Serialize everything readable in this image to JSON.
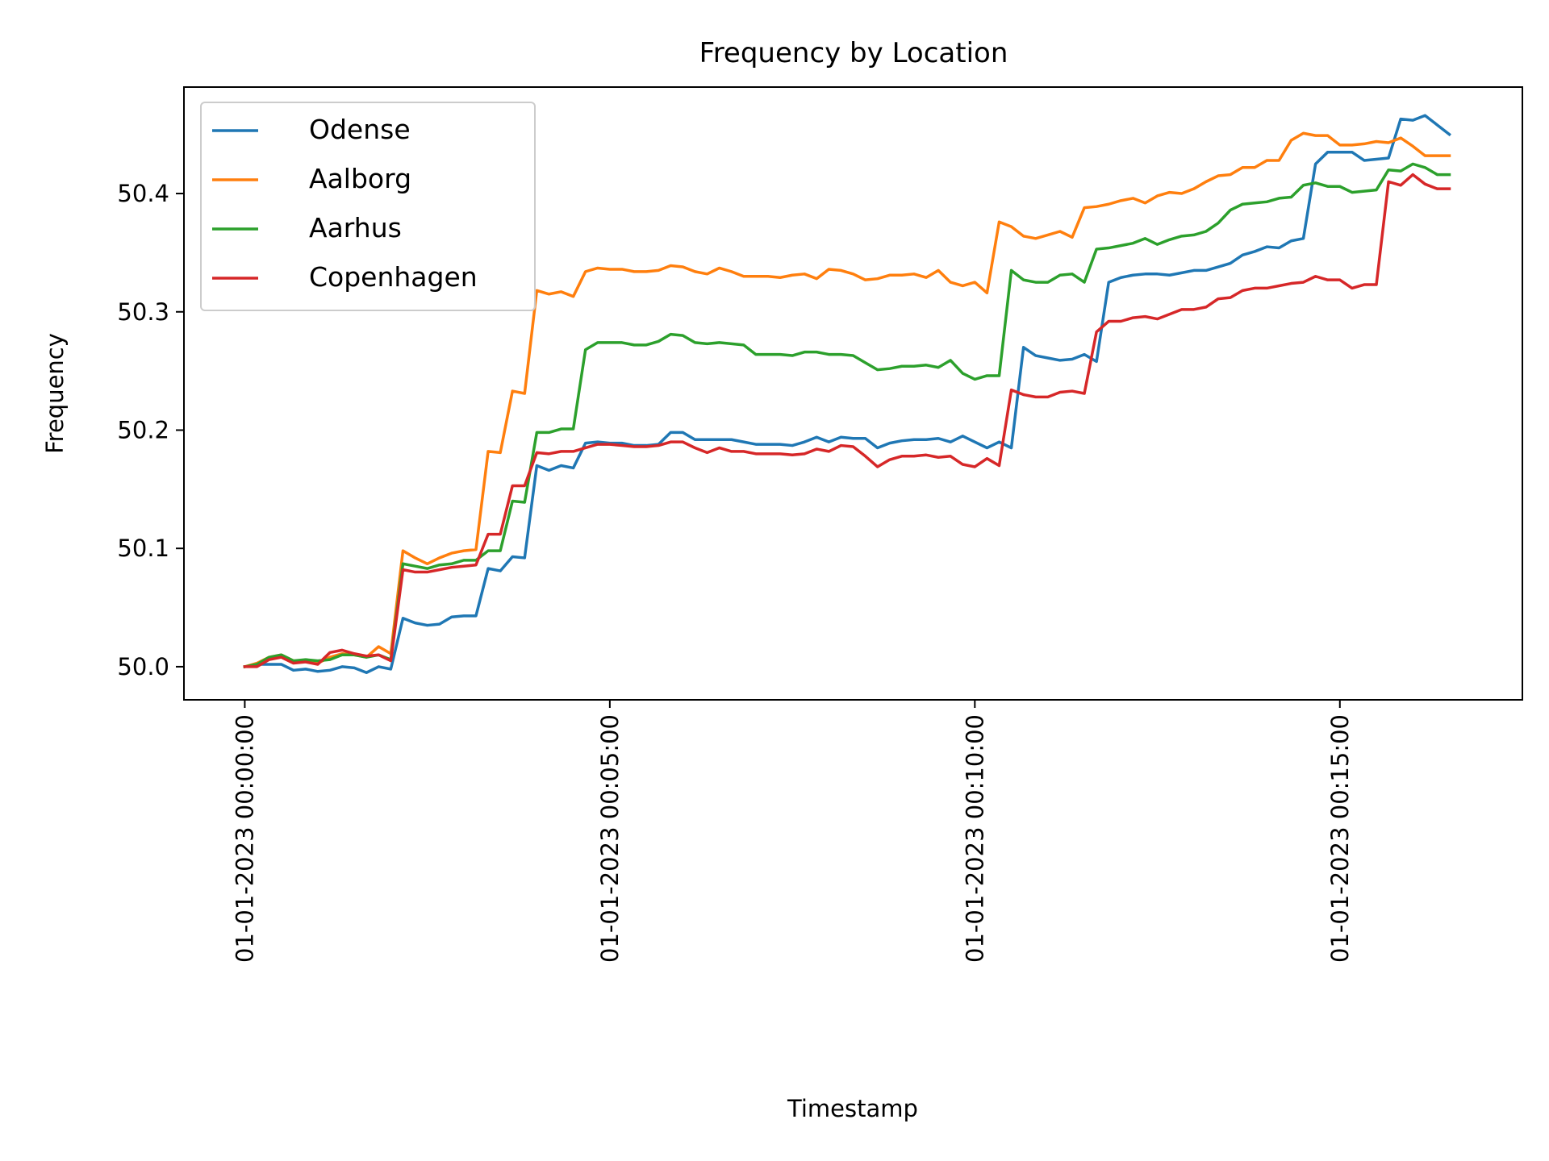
{
  "chart_data": {
    "type": "line",
    "title": "Frequency by Location",
    "xlabel": "Timestamp",
    "ylabel": "Frequency",
    "x": {
      "start": "01-01-2023 00:00:00",
      "step_seconds": 10,
      "count": 100
    },
    "xlim": [
      "31-12-2022 23:59:10",
      "01-01-2023 00:17:30"
    ],
    "ylim": [
      49.972,
      50.49
    ],
    "xticks": [
      {
        "value": "01-01-2023 00:00:00",
        "label": "01-01-2023 00:00:00"
      },
      {
        "value": "01-01-2023 00:05:00",
        "label": "01-01-2023 00:05:00"
      },
      {
        "value": "01-01-2023 00:10:00",
        "label": "01-01-2023 00:10:00"
      },
      {
        "value": "01-01-2023 00:15:00",
        "label": "01-01-2023 00:15:00"
      }
    ],
    "yticks": [
      {
        "value": 50.0,
        "label": "50.0"
      },
      {
        "value": 50.1,
        "label": "50.1"
      },
      {
        "value": 50.2,
        "label": "50.2"
      },
      {
        "value": 50.3,
        "label": "50.3"
      },
      {
        "value": 50.4,
        "label": "50.4"
      }
    ],
    "grid": false,
    "legend": "upper left",
    "series": [
      {
        "name": "Odense",
        "color": "#1f77b4",
        "values": [
          50.0,
          50.002,
          50.002,
          50.002,
          49.997,
          49.998,
          49.996,
          49.997,
          50.0,
          49.999,
          49.995,
          50.0,
          49.998,
          50.041,
          50.037,
          50.035,
          50.036,
          50.042,
          50.043,
          50.043,
          50.083,
          50.081,
          50.093,
          50.092,
          50.17,
          50.166,
          50.17,
          50.168,
          50.189,
          50.19,
          50.189,
          50.189,
          50.187,
          50.187,
          50.188,
          50.198,
          50.198,
          50.192,
          50.192,
          50.192,
          50.192,
          50.19,
          50.188,
          50.188,
          50.188,
          50.187,
          50.19,
          50.194,
          50.19,
          50.194,
          50.193,
          50.193,
          50.185,
          50.189,
          50.191,
          50.192,
          50.192,
          50.193,
          50.19,
          50.195,
          50.19,
          50.185,
          50.19,
          50.185,
          50.27,
          50.263,
          50.261,
          50.259,
          50.26,
          50.264,
          50.258,
          50.325,
          50.329,
          50.331,
          50.332,
          50.332,
          50.331,
          50.333,
          50.335,
          50.335,
          50.338,
          50.341,
          50.348,
          50.351,
          50.355,
          50.354,
          50.36,
          50.362,
          50.425,
          50.435,
          50.435,
          50.435,
          50.428,
          50.429,
          50.43,
          50.463,
          50.462,
          50.466,
          50.458,
          50.45
        ]
      },
      {
        "name": "Aalborg",
        "color": "#ff7f0e",
        "values": [
          50.0,
          50.003,
          50.008,
          50.01,
          50.005,
          50.005,
          50.003,
          50.008,
          50.011,
          50.01,
          50.008,
          50.017,
          50.011,
          50.098,
          50.092,
          50.087,
          50.092,
          50.096,
          50.098,
          50.099,
          50.182,
          50.181,
          50.233,
          50.231,
          50.318,
          50.315,
          50.317,
          50.313,
          50.334,
          50.337,
          50.336,
          50.336,
          50.334,
          50.334,
          50.335,
          50.339,
          50.338,
          50.334,
          50.332,
          50.337,
          50.334,
          50.33,
          50.33,
          50.33,
          50.329,
          50.331,
          50.332,
          50.328,
          50.336,
          50.335,
          50.332,
          50.327,
          50.328,
          50.331,
          50.331,
          50.332,
          50.329,
          50.335,
          50.325,
          50.322,
          50.325,
          50.316,
          50.376,
          50.372,
          50.364,
          50.362,
          50.365,
          50.368,
          50.363,
          50.388,
          50.389,
          50.391,
          50.394,
          50.396,
          50.392,
          50.398,
          50.401,
          50.4,
          50.404,
          50.41,
          50.415,
          50.416,
          50.422,
          50.422,
          50.428,
          50.428,
          50.445,
          50.451,
          50.449,
          50.449,
          50.441,
          50.441,
          50.442,
          50.444,
          50.443,
          50.447,
          50.44,
          50.432,
          50.432,
          50.432
        ]
      },
      {
        "name": "Aarhus",
        "color": "#2ca02c",
        "values": [
          50.0,
          50.002,
          50.008,
          50.01,
          50.005,
          50.006,
          50.005,
          50.006,
          50.01,
          50.01,
          50.008,
          50.01,
          50.006,
          50.087,
          50.085,
          50.083,
          50.086,
          50.087,
          50.09,
          50.09,
          50.098,
          50.098,
          50.14,
          50.139,
          50.198,
          50.198,
          50.201,
          50.201,
          50.268,
          50.274,
          50.274,
          50.274,
          50.272,
          50.272,
          50.275,
          50.281,
          50.28,
          50.274,
          50.273,
          50.274,
          50.273,
          50.272,
          50.264,
          50.264,
          50.264,
          50.263,
          50.266,
          50.266,
          50.264,
          50.264,
          50.263,
          50.257,
          50.251,
          50.252,
          50.254,
          50.254,
          50.255,
          50.253,
          50.259,
          50.248,
          50.243,
          50.246,
          50.246,
          50.335,
          50.327,
          50.325,
          50.325,
          50.331,
          50.332,
          50.325,
          50.353,
          50.354,
          50.356,
          50.358,
          50.362,
          50.357,
          50.361,
          50.364,
          50.365,
          50.368,
          50.375,
          50.386,
          50.391,
          50.392,
          50.393,
          50.396,
          50.397,
          50.407,
          50.409,
          50.406,
          50.406,
          50.401,
          50.402,
          50.403,
          50.42,
          50.419,
          50.425,
          50.422,
          50.416,
          50.416
        ]
      },
      {
        "name": "Copenhagen",
        "color": "#d62728",
        "values": [
          50.0,
          50.0,
          50.006,
          50.008,
          50.003,
          50.004,
          50.002,
          50.012,
          50.014,
          50.011,
          50.009,
          50.01,
          50.005,
          50.082,
          50.08,
          50.08,
          50.082,
          50.084,
          50.085,
          50.086,
          50.112,
          50.112,
          50.153,
          50.153,
          50.181,
          50.18,
          50.182,
          50.182,
          50.185,
          50.188,
          50.188,
          50.187,
          50.186,
          50.186,
          50.187,
          50.19,
          50.19,
          50.185,
          50.181,
          50.185,
          50.182,
          50.182,
          50.18,
          50.18,
          50.18,
          50.179,
          50.18,
          50.184,
          50.182,
          50.187,
          50.186,
          50.178,
          50.169,
          50.175,
          50.178,
          50.178,
          50.179,
          50.177,
          50.178,
          50.171,
          50.169,
          50.176,
          50.17,
          50.234,
          50.23,
          50.228,
          50.228,
          50.232,
          50.233,
          50.231,
          50.283,
          50.292,
          50.292,
          50.295,
          50.296,
          50.294,
          50.298,
          50.302,
          50.302,
          50.304,
          50.311,
          50.312,
          50.318,
          50.32,
          50.32,
          50.322,
          50.324,
          50.325,
          50.33,
          50.327,
          50.327,
          50.32,
          50.323,
          50.323,
          50.41,
          50.407,
          50.416,
          50.408,
          50.404,
          50.404
        ]
      }
    ]
  }
}
